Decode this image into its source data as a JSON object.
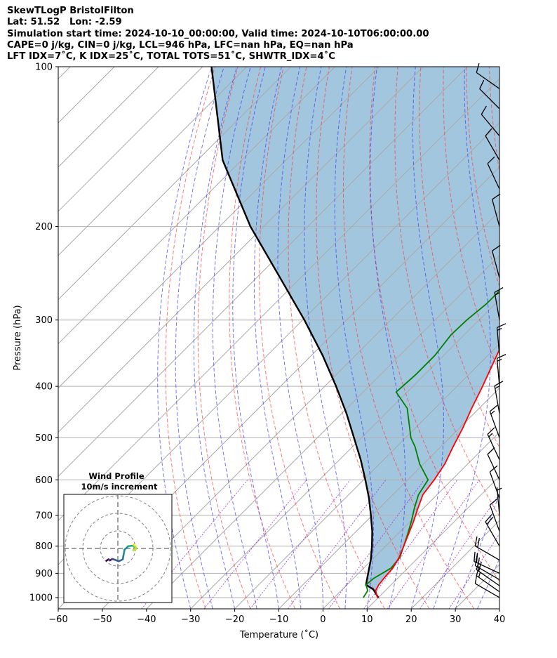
{
  "header": {
    "title": "SkewTLogP BristolFilton",
    "location": "Lat: 51.52   Lon: -2.59",
    "times": "Simulation start time: 2024-10-10_00:00:00, Valid time: 2024-10-10T06:00:00.00",
    "params": "CAPE=0 j/kg, CIN=0 j/kg, LCL=946 hPa, LFC=nan hPa, EQ=nan hPa",
    "indices": "LFT IDX=7˚C, K IDX=25˚C, TOTAL TOTS=51˚C, SHWTR_IDX=4˚C"
  },
  "chart_data": [
    {
      "type": "line",
      "subtype": "skew-t log-p",
      "xlabel": "Temperature (˚C)",
      "ylabel": "Pressure (hPa)",
      "xlim": [
        -60,
        40
      ],
      "ylim": [
        1050,
        100
      ],
      "y_scale": "log",
      "grid": true,
      "x_ticks": [
        "−60",
        "−50",
        "−40",
        "−30",
        "−20",
        "−10",
        "0",
        "10",
        "20",
        "30",
        "40"
      ],
      "y_ticks": [
        "100",
        "200",
        "300",
        "400",
        "500",
        "600",
        "700",
        "800",
        "900",
        "1000"
      ],
      "series": [
        {
          "role": "temperature",
          "color": "#ff0000",
          "points": [
            [
              9.8,
              1000
            ],
            [
              7.8,
              970
            ],
            [
              7.2,
              946
            ],
            [
              6.9,
              920
            ],
            [
              6.6,
              880
            ],
            [
              5.6,
              840
            ],
            [
              4.1,
              800
            ],
            [
              2.5,
              760
            ],
            [
              0.8,
              720
            ],
            [
              -1.2,
              680
            ],
            [
              -3.2,
              640
            ],
            [
              -4.0,
              600
            ],
            [
              -5.2,
              560
            ],
            [
              -7.2,
              520
            ],
            [
              -9.2,
              480
            ],
            [
              -11.7,
              440
            ],
            [
              -14.2,
              400
            ],
            [
              -17.2,
              360
            ],
            [
              -19.6,
              330
            ],
            [
              -21.6,
              300
            ],
            [
              -23.0,
              275
            ],
            [
              -22.6,
              260
            ],
            [
              -22.0,
              250
            ],
            [
              -20.5,
              235
            ],
            [
              -19.2,
              220
            ],
            [
              -17.5,
              205
            ],
            [
              -16.0,
              190
            ],
            [
              -14.8,
              178
            ],
            [
              -14.0,
              165
            ],
            [
              -14.2,
              150
            ],
            [
              -14.5,
              135
            ],
            [
              -14.4,
              120
            ],
            [
              -14.8,
              100
            ]
          ]
        },
        {
          "role": "dewpoint",
          "color": "#008000",
          "points": [
            [
              6.6,
              1000
            ],
            [
              6.0,
              970
            ],
            [
              4.3,
              946
            ],
            [
              4.6,
              920
            ],
            [
              6.2,
              880
            ],
            [
              5.8,
              840
            ],
            [
              4.1,
              800
            ],
            [
              2.3,
              760
            ],
            [
              0.3,
              720
            ],
            [
              -2.0,
              680
            ],
            [
              -4.2,
              640
            ],
            [
              -5.4,
              600
            ],
            [
              -10.9,
              560
            ],
            [
              -15.8,
              520
            ],
            [
              -18.8,
              500
            ],
            [
              -26.3,
              440
            ],
            [
              -32.5,
              410
            ],
            [
              -32.0,
              380
            ],
            [
              -32.0,
              350
            ],
            [
              -33.0,
              320
            ],
            [
              -32.8,
              300
            ],
            [
              -32.0,
              280
            ],
            [
              -32.0,
              260
            ],
            [
              -32.0,
              240
            ],
            [
              -33.5,
              220
            ],
            [
              -37.2,
              202
            ],
            [
              -43.9,
              190
            ],
            [
              -45.0,
              170
            ],
            [
              -43.0,
              150
            ],
            [
              -40.0,
              130
            ],
            [
              -36.5,
              115
            ],
            [
              -33.6,
              100
            ]
          ]
        },
        {
          "role": "parcel",
          "color": "#000000",
          "points": [
            [
              10.0,
              1000
            ],
            [
              7.0,
              965
            ],
            [
              4.3,
              946
            ],
            [
              2.2,
              900
            ],
            [
              -0.2,
              850
            ],
            [
              -3.1,
              800
            ],
            [
              -6.4,
              750
            ],
            [
              -10.3,
              700
            ],
            [
              -14.6,
              650
            ],
            [
              -19.6,
              600
            ],
            [
              -25.2,
              550
            ],
            [
              -31.7,
              500
            ],
            [
              -38.9,
              450
            ],
            [
              -47.4,
              400
            ],
            [
              -57.4,
              350
            ],
            [
              -69.6,
              300
            ],
            [
              -84.6,
              250
            ],
            [
              -103.0,
              200
            ],
            [
              -124.3,
              150
            ],
            [
              -148.0,
              100
            ]
          ]
        }
      ],
      "cape_cin_fill": "#a3c6df",
      "wind_barbs": [
        {
          "p": 1000,
          "dir": 300,
          "kt": 10
        },
        {
          "p": 975,
          "dir": 305,
          "kt": 15
        },
        {
          "p": 950,
          "dir": 305,
          "kt": 20
        },
        {
          "p": 925,
          "dir": 300,
          "kt": 20
        },
        {
          "p": 900,
          "dir": 295,
          "kt": 20
        },
        {
          "p": 850,
          "dir": 300,
          "kt": 20
        },
        {
          "p": 800,
          "dir": 330,
          "kt": 20
        },
        {
          "p": 750,
          "dir": 340,
          "kt": 10
        },
        {
          "p": 700,
          "dir": 355,
          "kt": 5
        },
        {
          "p": 650,
          "dir": 340,
          "kt": 10
        },
        {
          "p": 600,
          "dir": 335,
          "kt": 10
        },
        {
          "p": 550,
          "dir": 335,
          "kt": 15
        },
        {
          "p": 500,
          "dir": 340,
          "kt": 15
        },
        {
          "p": 450,
          "dir": 350,
          "kt": 15
        },
        {
          "p": 400,
          "dir": 355,
          "kt": 15
        },
        {
          "p": 350,
          "dir": 355,
          "kt": 15
        },
        {
          "p": 300,
          "dir": 350,
          "kt": 15
        },
        {
          "p": 250,
          "dir": 345,
          "kt": 10
        },
        {
          "p": 200,
          "dir": 345,
          "kt": 10
        },
        {
          "p": 170,
          "dir": 335,
          "kt": 10
        },
        {
          "p": 150,
          "dir": 330,
          "kt": 10
        },
        {
          "p": 135,
          "dir": 320,
          "kt": 10
        },
        {
          "p": 120,
          "dir": 315,
          "kt": 10
        },
        {
          "p": 110,
          "dir": 305,
          "kt": 10
        }
      ]
    },
    {
      "type": "line",
      "subtype": "hodograph",
      "title": "Wind Profile",
      "subtitle": "10m/s increment",
      "ring_step_ms": 10,
      "rings": 3,
      "points": [
        [
          -6.5,
          -7.0
        ],
        [
          -5.8,
          -6.5
        ],
        [
          -5.3,
          -6.2
        ],
        [
          -4.5,
          -6.8
        ],
        [
          -3.2,
          -6.0
        ],
        [
          -1.5,
          -6.5
        ],
        [
          0.5,
          -7.3
        ],
        [
          2.8,
          -6.2
        ],
        [
          3.3,
          -3.5
        ],
        [
          3.8,
          -0.7
        ],
        [
          6.0,
          1.3
        ],
        [
          8.8,
          1.6
        ],
        [
          9.3,
          1.0
        ],
        [
          10.0,
          -0.5
        ],
        [
          8.8,
          -1.0
        ],
        [
          10.5,
          0.0
        ],
        [
          9.5,
          1.8
        ],
        [
          9.0,
          2.3
        ]
      ],
      "colors": [
        "#440154",
        "#482475",
        "#414487",
        "#355f8d",
        "#2a788e",
        "#21908d",
        "#22a884",
        "#44bf70",
        "#7ad151",
        "#bddf26",
        "#fde725"
      ]
    }
  ]
}
